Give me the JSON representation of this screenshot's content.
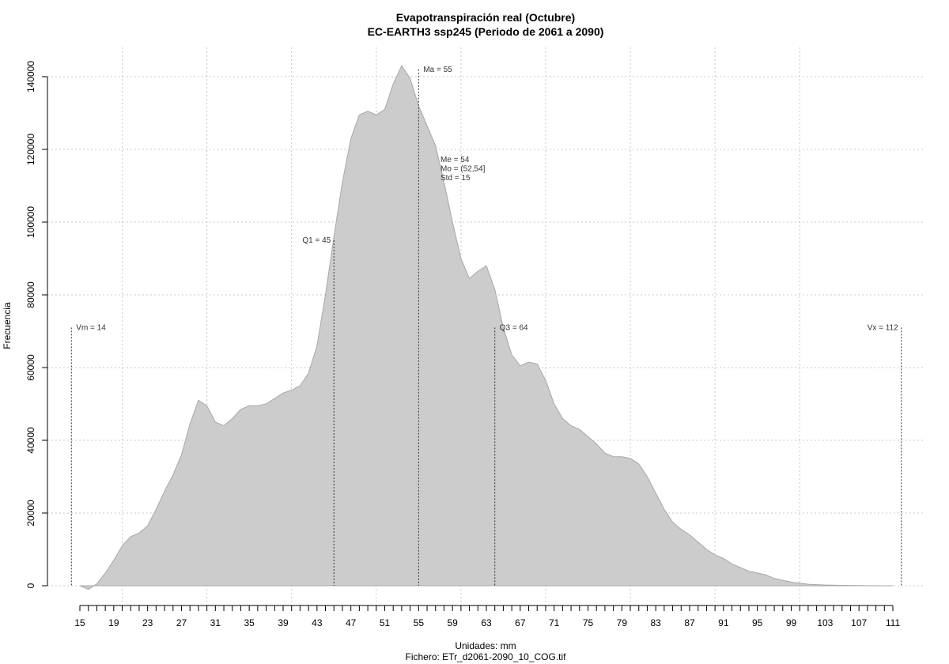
{
  "chart_data": {
    "type": "area",
    "title": "Evapotranspiración real (Octubre)",
    "subtitle": "EC-EARTH3 ssp245 (Periodo de 2061 a 2090)",
    "xlabel": "Unidades: mm",
    "ylabel": "Frecuencia",
    "caption": "Fichero: ETr_d2061-2090_10_COG.tif",
    "xlim": [
      15,
      111
    ],
    "ylim": [
      0,
      140000
    ],
    "x_ticks": [
      15,
      19,
      23,
      27,
      31,
      35,
      39,
      43,
      47,
      51,
      55,
      59,
      63,
      67,
      71,
      75,
      79,
      83,
      87,
      91,
      95,
      99,
      103,
      107,
      111
    ],
    "y_ticks": [
      0,
      20000,
      40000,
      60000,
      80000,
      100000,
      120000,
      140000
    ],
    "grid": true,
    "fill_color": "#cccccc",
    "x": [
      15,
      16,
      17,
      18,
      19,
      20,
      21,
      22,
      23,
      24,
      25,
      26,
      27,
      28,
      29,
      30,
      31,
      32,
      33,
      34,
      35,
      36,
      37,
      38,
      39,
      40,
      41,
      42,
      43,
      44,
      45,
      46,
      47,
      48,
      49,
      50,
      51,
      52,
      53,
      54,
      55,
      56,
      57,
      58,
      59,
      60,
      61,
      62,
      63,
      64,
      65,
      66,
      67,
      68,
      69,
      70,
      71,
      72,
      73,
      74,
      75,
      76,
      77,
      78,
      79,
      80,
      81,
      82,
      83,
      84,
      85,
      86,
      87,
      88,
      89,
      90,
      91,
      92,
      93,
      94,
      95,
      96,
      97,
      98,
      99,
      100,
      101,
      102,
      103,
      104,
      105,
      106,
      107,
      108,
      109,
      110,
      111
    ],
    "y": [
      0,
      -1000,
      500,
      3500,
      7000,
      11000,
      13500,
      14500,
      16500,
      21000,
      26000,
      30500,
      36000,
      44500,
      51000,
      49500,
      45000,
      44000,
      46000,
      48500,
      49500,
      49500,
      50000,
      51500,
      53000,
      53800,
      55000,
      58500,
      66000,
      80000,
      96000,
      111000,
      123000,
      129500,
      130500,
      129500,
      131000,
      138000,
      143000,
      139500,
      132000,
      126500,
      121000,
      111000,
      100000,
      90000,
      84500,
      86500,
      88000,
      81500,
      71000,
      63500,
      60500,
      61500,
      61000,
      56500,
      50000,
      46000,
      44000,
      43000,
      41000,
      39000,
      36500,
      35500,
      35500,
      35000,
      33500,
      30000,
      25500,
      21000,
      17500,
      15500,
      14000,
      12000,
      10000,
      8500,
      7500,
      6000,
      5000,
      4000,
      3500,
      3000,
      2000,
      1500,
      1000,
      700,
      400,
      300,
      200,
      150,
      100,
      80,
      60,
      40,
      20,
      10,
      0
    ],
    "annotations": [
      {
        "name": "vm",
        "label": "Vm = 14",
        "x": 14,
        "y": 71000,
        "align": "start"
      },
      {
        "name": "q1",
        "label": "Q1 = 45",
        "x": 45,
        "y": 95000,
        "align": "end"
      },
      {
        "name": "ma",
        "label": "Ma = 55",
        "x": 55,
        "y": 142000,
        "align": "start"
      },
      {
        "name": "q3",
        "label": "Q3 = 64",
        "x": 64,
        "y": 71000,
        "align": "start"
      },
      {
        "name": "vx",
        "label": "Vx = 112",
        "x": 112,
        "y": 71000,
        "align": "end"
      }
    ],
    "stats_block": [
      "Me = 54",
      "Mo = (52,54]",
      "Std = 15"
    ]
  }
}
